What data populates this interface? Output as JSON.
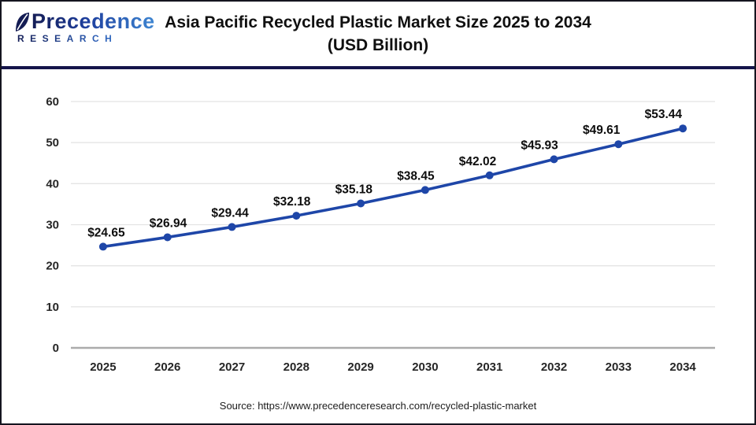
{
  "logo": {
    "brand": "Precedence",
    "sub": "RESEARCH"
  },
  "header": {
    "title_line1": "Asia Pacific Recycled Plastic Market Size 2025 to 2034",
    "title_line2": "(USD Billion)"
  },
  "footer": {
    "source": "Source: https://www.precedenceresearch.com/recycled-plastic-market"
  },
  "colors": {
    "line": "#1e46a8",
    "marker": "#1e46a8",
    "grid": "#e4e4e4",
    "axis_zero_line": "#ababab",
    "navy_rule": "#14144a",
    "text": "#101010"
  },
  "chart_data": {
    "type": "line",
    "title": "Asia Pacific Recycled Plastic Market Size 2025 to 2034 (USD Billion)",
    "categories": [
      "2025",
      "2026",
      "2027",
      "2028",
      "2029",
      "2030",
      "2031",
      "2032",
      "2033",
      "2034"
    ],
    "series": [
      {
        "name": "Asia Pacific Recycled Plastic Market Size (USD Billion)",
        "values": [
          24.65,
          26.94,
          29.44,
          32.18,
          35.18,
          38.45,
          42.02,
          45.93,
          49.61,
          53.44
        ]
      }
    ],
    "data_labels": [
      "$24.65",
      "$26.94",
      "$29.44",
      "$32.18",
      "$35.18",
      "$38.45",
      "$42.02",
      "$45.93",
      "$49.61",
      "$53.44"
    ],
    "xlabel": "",
    "ylabel": "",
    "ylim": [
      0,
      60
    ],
    "y_ticks": [
      0,
      10,
      20,
      30,
      40,
      50,
      60
    ],
    "grid": true,
    "legend_position": "none"
  }
}
